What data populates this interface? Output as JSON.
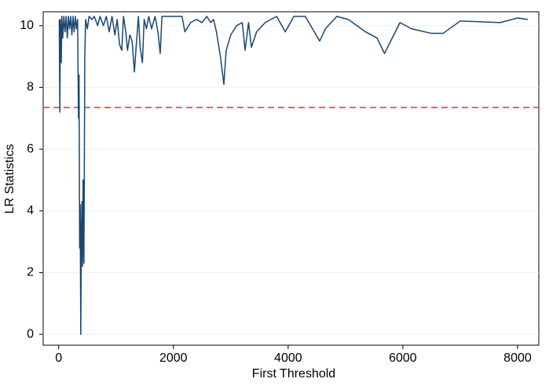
{
  "chart_data": {
    "type": "line",
    "x_label": "First Threshold",
    "y_label": "LR Statistics",
    "x": [
      10,
      20,
      30,
      45,
      55,
      70,
      90,
      110,
      130,
      150,
      170,
      190,
      210,
      230,
      250,
      270,
      290,
      310,
      330,
      345,
      355,
      365,
      375,
      385,
      395,
      405,
      415,
      425,
      440,
      455,
      470,
      500,
      530,
      580,
      620,
      680,
      720,
      780,
      830,
      880,
      930,
      980,
      1020,
      1060,
      1100,
      1130,
      1170,
      1200,
      1240,
      1280,
      1320,
      1350,
      1390,
      1420,
      1460,
      1490,
      1530,
      1570,
      1620,
      1680,
      1730,
      1770,
      1800,
      2000,
      2150,
      2200,
      2300,
      2400,
      2500,
      2580,
      2650,
      2700,
      2750,
      2820,
      2880,
      2920,
      3000,
      3100,
      3200,
      3250,
      3310,
      3360,
      3450,
      3600,
      3800,
      3950,
      4100,
      4300,
      4550,
      4650,
      4850,
      5050,
      5350,
      5550,
      5680,
      5950,
      6150,
      6500,
      6700,
      7000,
      7700,
      8000,
      8180
    ],
    "series": [
      {
        "color": "#1a476f",
        "values": [
          10.2,
          7.2,
          10.2,
          8.8,
          10.3,
          9.6,
          10.3,
          9.8,
          10.3,
          9.6,
          10.3,
          9.9,
          10.3,
          9.7,
          10.3,
          9.8,
          10.3,
          9.9,
          10.2,
          7.0,
          8.4,
          2.8,
          4.2,
          0,
          3.3,
          4.3,
          2.2,
          5.0,
          2.3,
          9.0,
          10.2,
          9.9,
          10.3,
          10.2,
          10.3,
          10.0,
          10.3,
          10.0,
          10.3,
          9.8,
          10.3,
          9.7,
          10.2,
          9.4,
          9.2,
          10.3,
          9.8,
          9.2,
          9.7,
          9.5,
          8.5,
          9.3,
          10.3,
          9.3,
          8.8,
          10.2,
          9.9,
          10.3,
          9.9,
          10.3,
          9.8,
          9.1,
          10.3,
          10.3,
          10.3,
          9.8,
          10.1,
          10.2,
          10.1,
          10.3,
          10.1,
          10.2,
          9.8,
          9.0,
          8.1,
          9.2,
          9.7,
          10.0,
          10.1,
          9.2,
          10.1,
          9.3,
          9.8,
          10.1,
          10.3,
          9.8,
          10.3,
          10.3,
          9.5,
          9.9,
          10.3,
          10.2,
          9.8,
          9.6,
          9.1,
          10.1,
          9.9,
          9.75,
          9.75,
          10.15,
          10.1,
          10.25,
          10.2
        ]
      }
    ],
    "hline": {
      "value": 7.35,
      "color": "#e0303a"
    },
    "xlim": [
      -270,
      8370
    ],
    "ylim": [
      -0.35,
      10.45
    ],
    "xticks": [
      0,
      2000,
      4000,
      6000,
      8000
    ],
    "yticks": [
      0,
      2,
      4,
      6,
      8,
      10
    ],
    "grid": true
  }
}
